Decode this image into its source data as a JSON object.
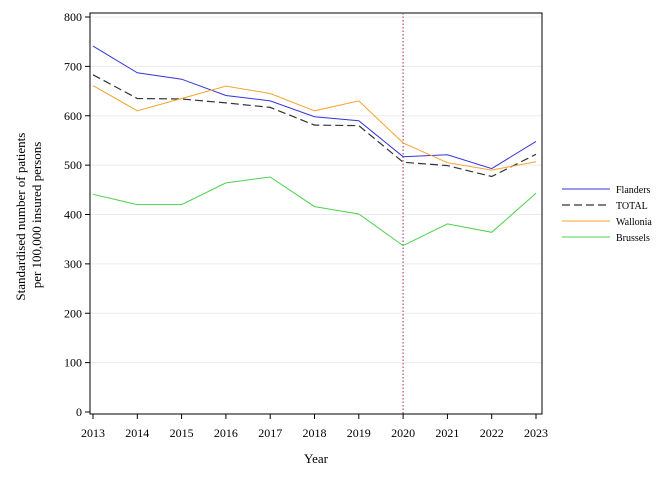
{
  "chart_data": {
    "type": "line",
    "xlabel": "Year",
    "ylabel": [
      "Standardised number of patients",
      "per 100,000 insured persons"
    ],
    "x": [
      2013,
      2014,
      2015,
      2016,
      2017,
      2018,
      2019,
      2020,
      2021,
      2022,
      2023
    ],
    "ylim": [
      0,
      800
    ],
    "yticks": [
      0,
      100,
      200,
      300,
      400,
      500,
      600,
      700,
      800
    ],
    "grid": "horizontal",
    "reference_line_x": 2020,
    "reference_line_color": "#b04a6a",
    "legend_position": "right",
    "series": [
      {
        "name": "Flanders",
        "color": "#3535d8",
        "dash": "solid",
        "values": [
          741,
          687,
          674,
          641,
          630,
          598,
          590,
          517,
          521,
          493,
          548
        ]
      },
      {
        "name": "TOTAL",
        "color": "#333333",
        "dash": "dashed",
        "values": [
          683,
          635,
          634,
          626,
          617,
          581,
          580,
          506,
          499,
          477,
          522
        ]
      },
      {
        "name": "Wallonia",
        "color": "#f4a430",
        "dash": "solid",
        "values": [
          661,
          610,
          635,
          660,
          645,
          610,
          630,
          545,
          505,
          490,
          507
        ]
      },
      {
        "name": "Brussels",
        "color": "#4fd14f",
        "dash": "solid",
        "values": [
          441,
          420,
          420,
          464,
          476,
          416,
          401,
          337,
          381,
          364,
          443
        ]
      }
    ]
  }
}
